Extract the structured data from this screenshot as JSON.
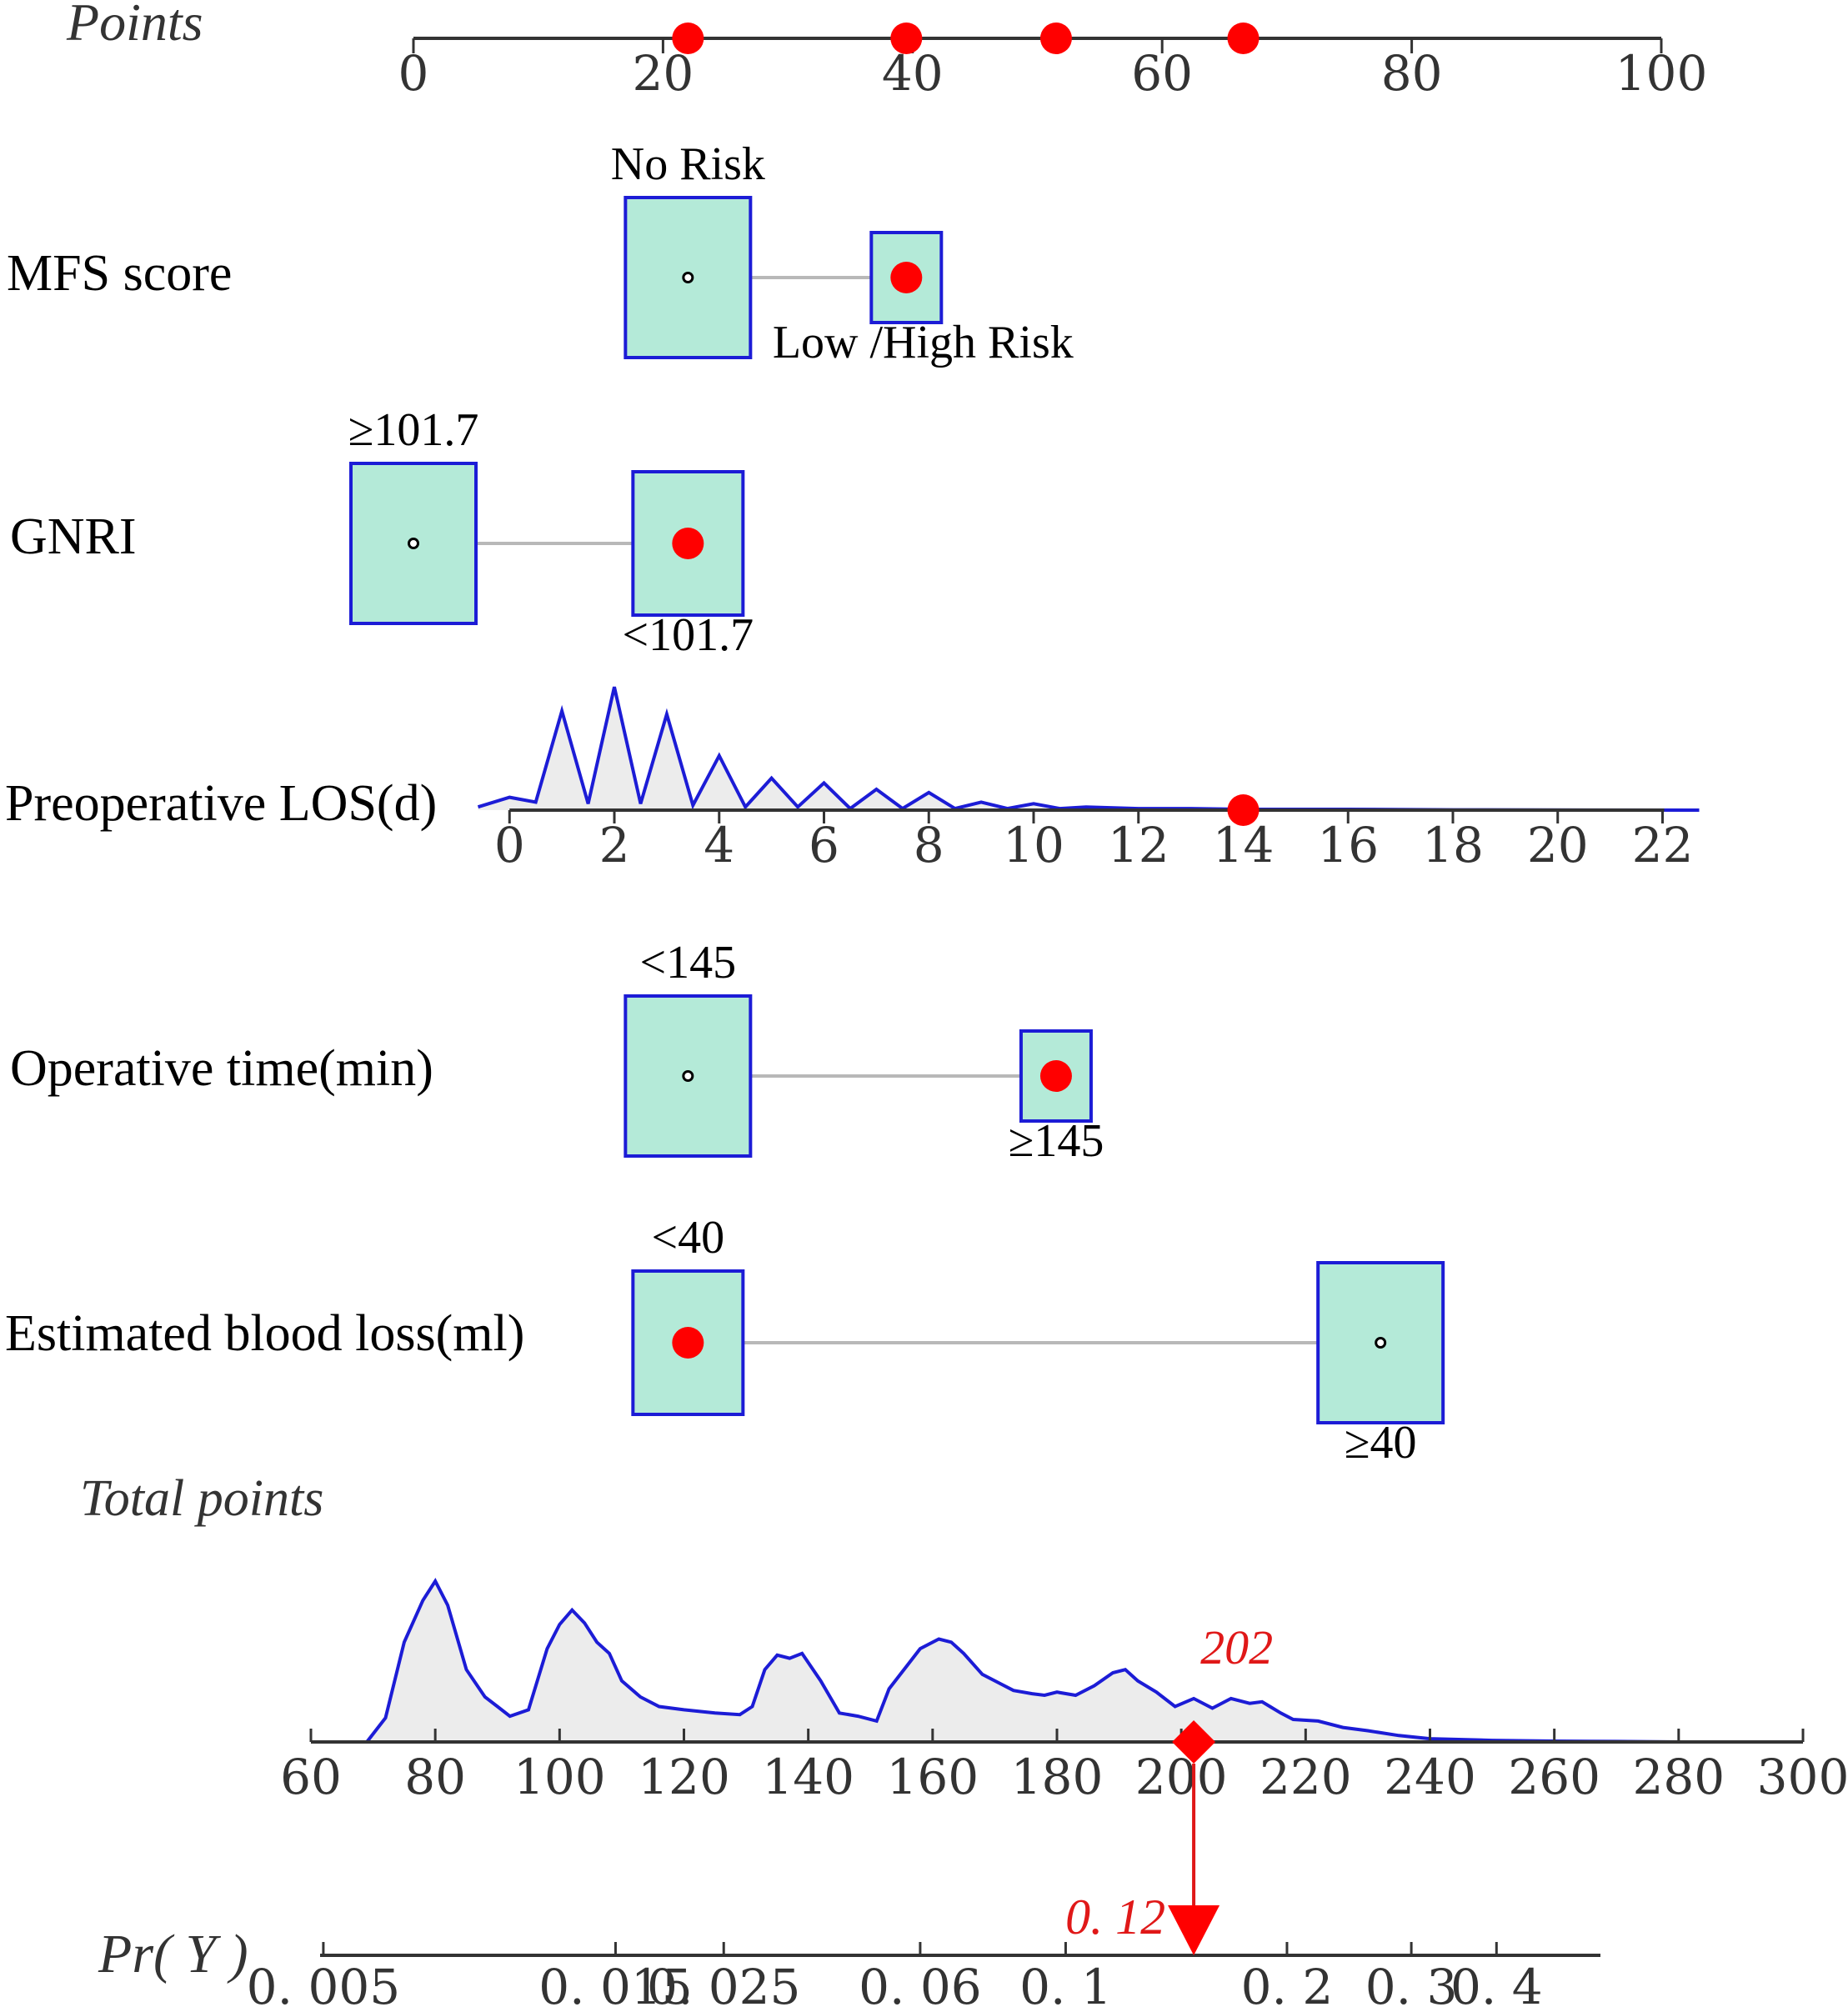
{
  "chart_data": {
    "type": "nomogram",
    "points_axis": {
      "title": "Points",
      "min": 0,
      "max": 100,
      "ticks": [
        0,
        20,
        40,
        60,
        80,
        100
      ],
      "markers": [
        22,
        39.5,
        51.5,
        66.5
      ]
    },
    "variables": [
      {
        "name": "MFS score",
        "kind": "categorical",
        "levels": [
          {
            "label": "No Risk",
            "points": 22,
            "label_pos": "above",
            "box": "large"
          },
          {
            "label": "Low /High Risk",
            "points": 39.5,
            "label_pos": "below",
            "box": "small"
          }
        ],
        "selected_points": 39.5
      },
      {
        "name": "GNRI",
        "kind": "categorical",
        "levels": [
          {
            "label": "≥101.7",
            "points": 0,
            "label_pos": "above",
            "box": "large"
          },
          {
            "label": "<101.7",
            "points": 22,
            "label_pos": "below",
            "box": "medium"
          }
        ],
        "selected_points": 22
      },
      {
        "name": "Preoperative LOS(d)",
        "kind": "continuous",
        "ticks": [
          0,
          2,
          4,
          6,
          8,
          10,
          12,
          14,
          16,
          18,
          20,
          22
        ],
        "tick_points": [
          7.7,
          16.1,
          24.5,
          32.9,
          41.3,
          49.7,
          58.1,
          66.5,
          74.9,
          83.3,
          91.7,
          100.1
        ],
        "selected_value": 14,
        "density": [
          [
            -0.6,
            0.02
          ],
          [
            0,
            0.08
          ],
          [
            0.5,
            0.05
          ],
          [
            1,
            0.62
          ],
          [
            1.5,
            0.04
          ],
          [
            2,
            0.77
          ],
          [
            2.5,
            0.04
          ],
          [
            3,
            0.6
          ],
          [
            3.5,
            0.03
          ],
          [
            4,
            0.34
          ],
          [
            4.5,
            0.02
          ],
          [
            5,
            0.2
          ],
          [
            5.5,
            0.02
          ],
          [
            6,
            0.17
          ],
          [
            6.5,
            0.01
          ],
          [
            7,
            0.13
          ],
          [
            7.5,
            0.01
          ],
          [
            8,
            0.11
          ],
          [
            8.5,
            0.01
          ],
          [
            9,
            0.05
          ],
          [
            9.5,
            0.01
          ],
          [
            10,
            0.04
          ],
          [
            10.5,
            0.01
          ],
          [
            11,
            0.02
          ],
          [
            12,
            0.01
          ],
          [
            13,
            0.01
          ],
          [
            14,
            0.005
          ],
          [
            16,
            0.005
          ],
          [
            18,
            0.002
          ],
          [
            22.7,
            0.0
          ]
        ]
      },
      {
        "name": "Operative time(min)",
        "kind": "categorical",
        "levels": [
          {
            "label": "<145",
            "points": 22,
            "label_pos": "above",
            "box": "large"
          },
          {
            "label": "≥145",
            "points": 51.5,
            "label_pos": "below",
            "box": "small"
          }
        ],
        "selected_points": 51.5
      },
      {
        "name": "Estimated blood loss(ml)",
        "kind": "categorical",
        "levels": [
          {
            "label": "<40",
            "points": 22,
            "label_pos": "above",
            "box": "medium"
          },
          {
            "label": "≥40",
            "points": 77.5,
            "label_pos": "below",
            "box": "large"
          }
        ],
        "selected_points": 22
      }
    ],
    "total_points_axis": {
      "title": "Total points",
      "min": 60,
      "max": 300,
      "ticks": [
        60,
        80,
        100,
        120,
        140,
        160,
        180,
        200,
        220,
        240,
        260,
        280,
        300
      ],
      "density": [
        [
          69,
          0.0
        ],
        [
          72,
          0.15
        ],
        [
          75,
          0.62
        ],
        [
          78,
          0.88
        ],
        [
          80,
          1.0
        ],
        [
          82,
          0.85
        ],
        [
          85,
          0.45
        ],
        [
          88,
          0.28
        ],
        [
          90,
          0.22
        ],
        [
          92,
          0.16
        ],
        [
          95,
          0.2
        ],
        [
          98,
          0.58
        ],
        [
          100,
          0.73
        ],
        [
          102,
          0.82
        ],
        [
          104,
          0.74
        ],
        [
          106,
          0.62
        ],
        [
          108,
          0.55
        ],
        [
          110,
          0.38
        ],
        [
          113,
          0.28
        ],
        [
          116,
          0.22
        ],
        [
          120,
          0.2
        ],
        [
          125,
          0.18
        ],
        [
          129,
          0.17
        ],
        [
          131,
          0.22
        ],
        [
          133,
          0.45
        ],
        [
          135,
          0.54
        ],
        [
          137,
          0.52
        ],
        [
          139,
          0.55
        ],
        [
          142,
          0.38
        ],
        [
          145,
          0.18
        ],
        [
          148,
          0.16
        ],
        [
          151,
          0.13
        ],
        [
          153,
          0.33
        ],
        [
          156,
          0.48
        ],
        [
          158,
          0.58
        ],
        [
          161,
          0.64
        ],
        [
          163,
          0.62
        ],
        [
          165,
          0.55
        ],
        [
          168,
          0.42
        ],
        [
          171,
          0.36
        ],
        [
          173,
          0.32
        ],
        [
          176,
          0.3
        ],
        [
          178,
          0.29
        ],
        [
          180,
          0.31
        ],
        [
          183,
          0.29
        ],
        [
          186,
          0.35
        ],
        [
          189,
          0.43
        ],
        [
          191,
          0.45
        ],
        [
          193,
          0.38
        ],
        [
          196,
          0.31
        ],
        [
          199,
          0.22
        ],
        [
          202,
          0.27
        ],
        [
          205,
          0.21
        ],
        [
          208,
          0.27
        ],
        [
          211,
          0.24
        ],
        [
          213,
          0.25
        ],
        [
          216,
          0.18
        ],
        [
          218,
          0.14
        ],
        [
          222,
          0.13
        ],
        [
          226,
          0.09
        ],
        [
          230,
          0.07
        ],
        [
          235,
          0.04
        ],
        [
          240,
          0.02
        ],
        [
          250,
          0.01
        ],
        [
          260,
          0.005
        ],
        [
          270,
          0.003
        ],
        [
          280,
          0.0
        ]
      ],
      "selected_value": 202,
      "selected_label": "202"
    },
    "probability_axis": {
      "title": "Pr( Y )",
      "ticks": [
        0.005,
        0.015,
        0.025,
        0.06,
        0.1,
        0.2,
        0.3,
        0.4
      ],
      "tick_labels": [
        "0. 005",
        "0. 015",
        "0. 025",
        "0. 06",
        "0. 1",
        "0. 2",
        "0. 3",
        "0. 4"
      ],
      "tick_totals": [
        62,
        109,
        126.4,
        158,
        181.4,
        217,
        237,
        250.7
      ],
      "selected_value": 0.12,
      "selected_label": "0. 12",
      "selected_total": 202
    },
    "colors": {
      "marker": "#ff0000",
      "box_fill": "#b4ead8",
      "box_stroke": "#1c1cd6",
      "density_line": "#1c1cd6",
      "density_fill": "#ececec",
      "axis": "#333333",
      "connector": "#b8b8b8",
      "arrow": "#e01818"
    }
  }
}
